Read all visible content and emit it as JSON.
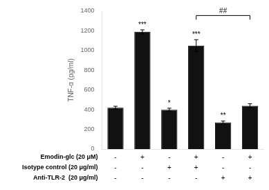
{
  "chart_data": {
    "type": "bar",
    "categories": [
      null,
      null,
      null,
      null,
      null,
      null
    ],
    "values": [
      420,
      1190,
      400,
      1050,
      270,
      440
    ],
    "errors": [
      15,
      20,
      15,
      60,
      15,
      20
    ],
    "color": "#111111",
    "ylabel": "TNF-α (pg/ml)",
    "ylim": [
      0,
      1400
    ],
    "yticks": [
      0,
      200,
      400,
      600,
      800,
      1000,
      1200,
      1400
    ],
    "grid": false,
    "tick_labels": "y",
    "annotations": [
      {
        "text": "***",
        "index": 1
      },
      {
        "text": "*",
        "index": 2
      },
      {
        "text": "***",
        "index": 3
      },
      {
        "text": "**",
        "index": 4
      }
    ],
    "bracket": {
      "from": 3,
      "to": 5,
      "y": 1355,
      "label": "##"
    },
    "table_rows": [
      {
        "label": "Emodin-glc (20 μM)",
        "values": [
          "-",
          "+",
          "-",
          "+",
          "-",
          "+"
        ]
      },
      {
        "label": "Isotype control (20 μg/ml)",
        "values": [
          "-",
          "-",
          "+",
          "+",
          "-",
          "-"
        ]
      },
      {
        "label": "Anti-TLR-2  (20 μg/ml)",
        "values": [
          "-",
          "-",
          "-",
          "-",
          "+",
          "+"
        ]
      }
    ]
  }
}
